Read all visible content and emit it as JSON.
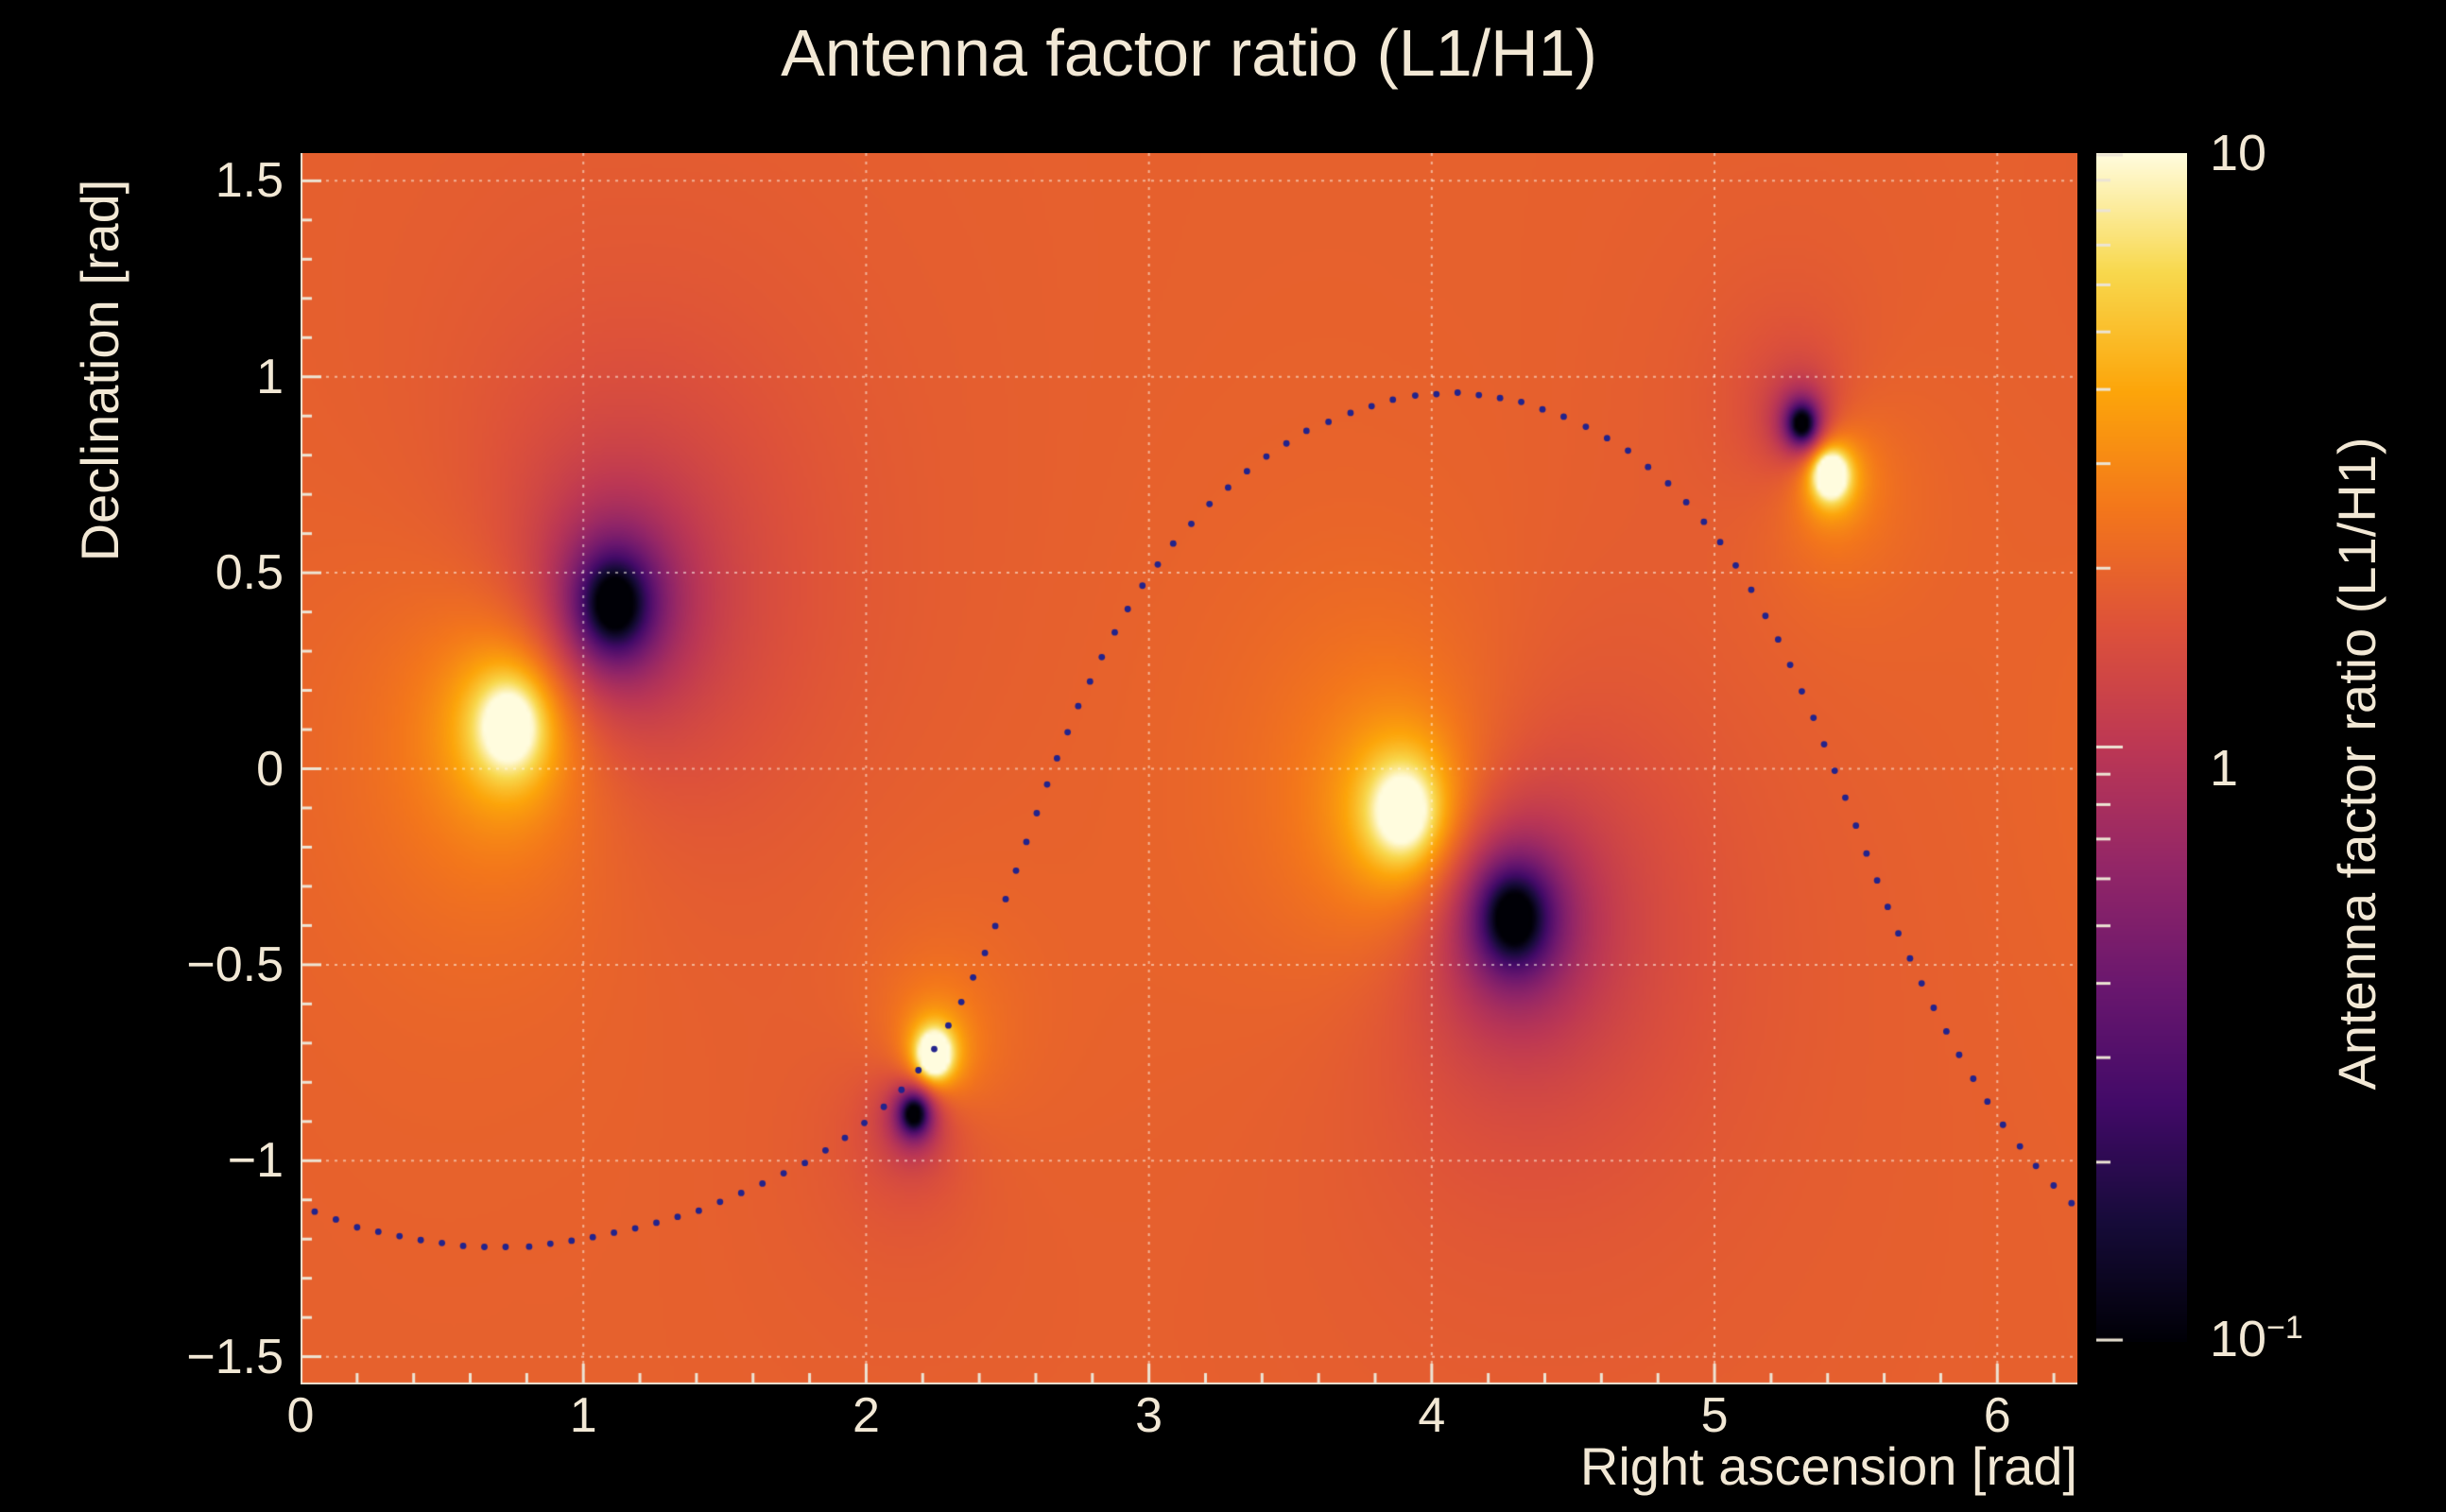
{
  "page": {
    "background_color": "#000000",
    "text_color": "#f2e8d5"
  },
  "chart_data": {
    "type": "heatmap",
    "title": "Antenna factor ratio (L1/H1)",
    "xlabel": "Right ascension [rad]",
    "ylabel": "Declination [rad]",
    "zlabel": "Antenna factor ratio (L1/H1)",
    "x_range": [
      0,
      6.2832
    ],
    "y_range": [
      -1.5708,
      1.5708
    ],
    "z_scale": "log",
    "z_range": [
      0.1,
      10
    ],
    "grid": true,
    "x_ticks": [
      {
        "label": "0",
        "value": 0
      },
      {
        "label": "1",
        "value": 1
      },
      {
        "label": "2",
        "value": 2
      },
      {
        "label": "3",
        "value": 3
      },
      {
        "label": "4",
        "value": 4
      },
      {
        "label": "5",
        "value": 5
      },
      {
        "label": "6",
        "value": 6
      }
    ],
    "y_ticks": [
      {
        "label": "1.5",
        "value": 1.5
      },
      {
        "label": "1",
        "value": 1
      },
      {
        "label": "0.5",
        "value": 0.5
      },
      {
        "label": "0",
        "value": 0
      },
      {
        "label": "−0.5",
        "value": -0.5
      },
      {
        "label": "−1",
        "value": -1
      },
      {
        "label": "−1.5",
        "value": -1.5
      }
    ],
    "colorbar": {
      "top_label": "10",
      "mid_label": "1",
      "bottom_base": "10",
      "bottom_exp": "−1",
      "minor_tick_values": [
        0.2,
        0.3,
        0.4,
        0.5,
        0.6,
        0.7,
        0.8,
        0.9,
        2,
        3,
        4,
        5,
        6,
        7,
        8,
        9
      ],
      "major_tick_values": [
        0.1,
        1,
        10
      ]
    },
    "background_t": 0.645,
    "colormap": [
      [
        0.0,
        [
          0,
          0,
          6
        ]
      ],
      [
        0.1,
        [
          22,
          11,
          57
        ]
      ],
      [
        0.2,
        [
          66,
          10,
          104
        ]
      ],
      [
        0.3,
        [
          106,
          23,
          110
        ]
      ],
      [
        0.4,
        [
          147,
          38,
          103
        ]
      ],
      [
        0.5,
        [
          188,
          55,
          84
        ]
      ],
      [
        0.6,
        [
          221,
          81,
          58
        ]
      ],
      [
        0.7,
        [
          243,
          118,
          27
        ]
      ],
      [
        0.8,
        [
          252,
          165,
          10
        ]
      ],
      [
        0.9,
        [
          248,
          216,
          77
        ]
      ],
      [
        1.0,
        [
          255,
          252,
          222
        ]
      ]
    ],
    "spots": [
      {
        "kind": "bright",
        "ra": 0.74,
        "dec": 0.11,
        "amp": 0.55,
        "sigma": 0.13,
        "halo_amp": 0.08,
        "halo_sigma": 0.5
      },
      {
        "kind": "dark",
        "ra": 1.11,
        "dec": 0.42,
        "amp": -0.78,
        "sigma": 0.12,
        "halo_amp": -0.12,
        "halo_sigma": 0.5
      },
      {
        "kind": "bright",
        "ra": 2.24,
        "dec": -0.73,
        "amp": 0.9,
        "sigma": 0.05,
        "halo_amp": 0.07,
        "halo_sigma": 0.3
      },
      {
        "kind": "dark",
        "ra": 2.17,
        "dec": -0.88,
        "amp": -0.85,
        "sigma": 0.05,
        "halo_amp": -0.07,
        "halo_sigma": 0.3
      },
      {
        "kind": "bright",
        "ra": 3.9,
        "dec": -0.11,
        "amp": 0.55,
        "sigma": 0.13,
        "halo_amp": 0.08,
        "halo_sigma": 0.5
      },
      {
        "kind": "dark",
        "ra": 4.29,
        "dec": -0.38,
        "amp": -0.78,
        "sigma": 0.12,
        "halo_amp": -0.12,
        "halo_sigma": 0.5
      },
      {
        "kind": "dark",
        "ra": 5.31,
        "dec": 0.88,
        "amp": -0.85,
        "sigma": 0.05,
        "halo_amp": -0.07,
        "halo_sigma": 0.3
      },
      {
        "kind": "bright",
        "ra": 5.41,
        "dec": 0.75,
        "amp": 0.9,
        "sigma": 0.05,
        "halo_amp": 0.07,
        "halo_sigma": 0.3
      }
    ],
    "overlay_curve": {
      "style": "dotted",
      "color": "#23238c",
      "dot_radius": 3.4,
      "dot_spacing": 0.075,
      "control_points": [
        [
          0.05,
          -1.13
        ],
        [
          0.2,
          -1.17
        ],
        [
          0.4,
          -1.2
        ],
        [
          0.6,
          -1.22
        ],
        [
          0.8,
          -1.22
        ],
        [
          1.0,
          -1.2
        ],
        [
          1.2,
          -1.17
        ],
        [
          1.4,
          -1.13
        ],
        [
          1.6,
          -1.07
        ],
        [
          1.8,
          -1.0
        ],
        [
          1.95,
          -0.93
        ],
        [
          2.1,
          -0.84
        ],
        [
          2.22,
          -0.74
        ],
        [
          2.32,
          -0.62
        ],
        [
          2.42,
          -0.47
        ],
        [
          2.5,
          -0.32
        ],
        [
          2.58,
          -0.16
        ],
        [
          2.66,
          0.0
        ],
        [
          2.75,
          0.16
        ],
        [
          2.85,
          0.31
        ],
        [
          2.95,
          0.44
        ],
        [
          3.08,
          0.57
        ],
        [
          3.22,
          0.68
        ],
        [
          3.38,
          0.78
        ],
        [
          3.55,
          0.86
        ],
        [
          3.72,
          0.91
        ],
        [
          3.9,
          0.95
        ],
        [
          4.1,
          0.96
        ],
        [
          4.3,
          0.94
        ],
        [
          4.5,
          0.89
        ],
        [
          4.68,
          0.82
        ],
        [
          4.85,
          0.72
        ],
        [
          5.0,
          0.6
        ],
        [
          5.12,
          0.47
        ],
        [
          5.24,
          0.31
        ],
        [
          5.35,
          0.13
        ],
        [
          5.45,
          -0.05
        ],
        [
          5.55,
          -0.24
        ],
        [
          5.65,
          -0.42
        ],
        [
          5.76,
          -0.59
        ],
        [
          5.88,
          -0.75
        ],
        [
          6.0,
          -0.89
        ],
        [
          6.12,
          -1.0
        ],
        [
          6.22,
          -1.08
        ],
        [
          6.28,
          -1.12
        ]
      ]
    }
  }
}
